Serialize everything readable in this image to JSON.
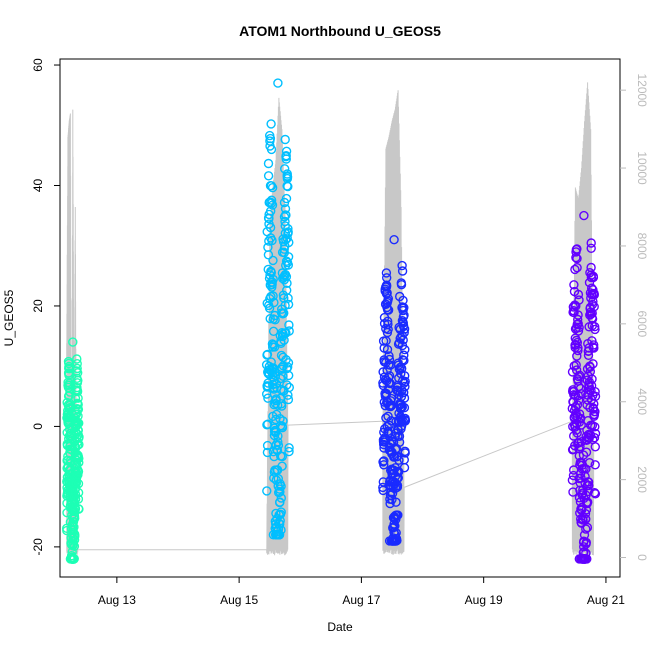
{
  "chart_data": {
    "type": "scatter",
    "title": "ATOM1 Northbound U_GEOS5",
    "xlabel": "Date",
    "ylabel": "U_GEOS5",
    "x_ticks": [
      {
        "label": "Aug 13",
        "day": 13
      },
      {
        "label": "Aug 15",
        "day": 15
      },
      {
        "label": "Aug 17",
        "day": 17
      },
      {
        "label": "Aug 19",
        "day": 19
      },
      {
        "label": "Aug 21",
        "day": 21
      }
    ],
    "xlim_days": [
      12.07,
      21.23
    ],
    "ylim": [
      -25,
      61
    ],
    "y_ticks": [
      -20,
      0,
      20,
      40,
      60
    ],
    "y2_ticks": [
      0,
      2000,
      4000,
      6000,
      8000,
      10000,
      12000
    ],
    "y2lim": [
      -500,
      12800
    ],
    "grid": false,
    "secondary_axis": "altitude (light grey trace, right axis)",
    "flights": [
      {
        "color": "#1DFFB5",
        "day_range": [
          12.18,
          12.38
        ],
        "u_range": [
          -22,
          14
        ],
        "alt_profile": [
          [
            12.18,
            5500
          ],
          [
            12.2,
            10800
          ],
          [
            12.22,
            11200
          ],
          [
            12.24,
            11400
          ],
          [
            12.26,
            200
          ],
          [
            12.28,
            11500
          ],
          [
            12.3,
            3000
          ],
          [
            12.32,
            9000
          ],
          [
            12.34,
            500
          ],
          [
            12.36,
            200
          ]
        ]
      },
      {
        "color": "#00BFFF",
        "day_range": [
          15.45,
          15.82
        ],
        "u_range": [
          -18,
          57
        ],
        "alt_profile": [
          [
            15.45,
            200
          ],
          [
            15.5,
            8500
          ],
          [
            15.55,
            9500
          ],
          [
            15.6,
            10200
          ],
          [
            15.65,
            11800
          ],
          [
            15.7,
            11000
          ],
          [
            15.75,
            9000
          ],
          [
            15.8,
            3400
          ]
        ]
      },
      {
        "color": "#1A2BFF",
        "day_range": [
          17.35,
          17.72
        ],
        "u_range": [
          -19,
          31
        ],
        "alt_profile": [
          [
            17.35,
            3500
          ],
          [
            17.4,
            10500
          ],
          [
            17.45,
            10800
          ],
          [
            17.5,
            11200
          ],
          [
            17.55,
            11500
          ],
          [
            17.6,
            12000
          ],
          [
            17.65,
            9000
          ],
          [
            17.7,
            1800
          ]
        ]
      },
      {
        "color": "#6200FF",
        "day_range": [
          20.45,
          20.83
        ],
        "u_range": [
          -22,
          35
        ],
        "alt_profile": [
          [
            20.45,
            3500
          ],
          [
            20.5,
            9500
          ],
          [
            20.55,
            9200
          ],
          [
            20.6,
            10000
          ],
          [
            20.65,
            11200
          ],
          [
            20.7,
            12200
          ],
          [
            20.75,
            11000
          ],
          [
            20.8,
            2800
          ]
        ]
      }
    ]
  }
}
